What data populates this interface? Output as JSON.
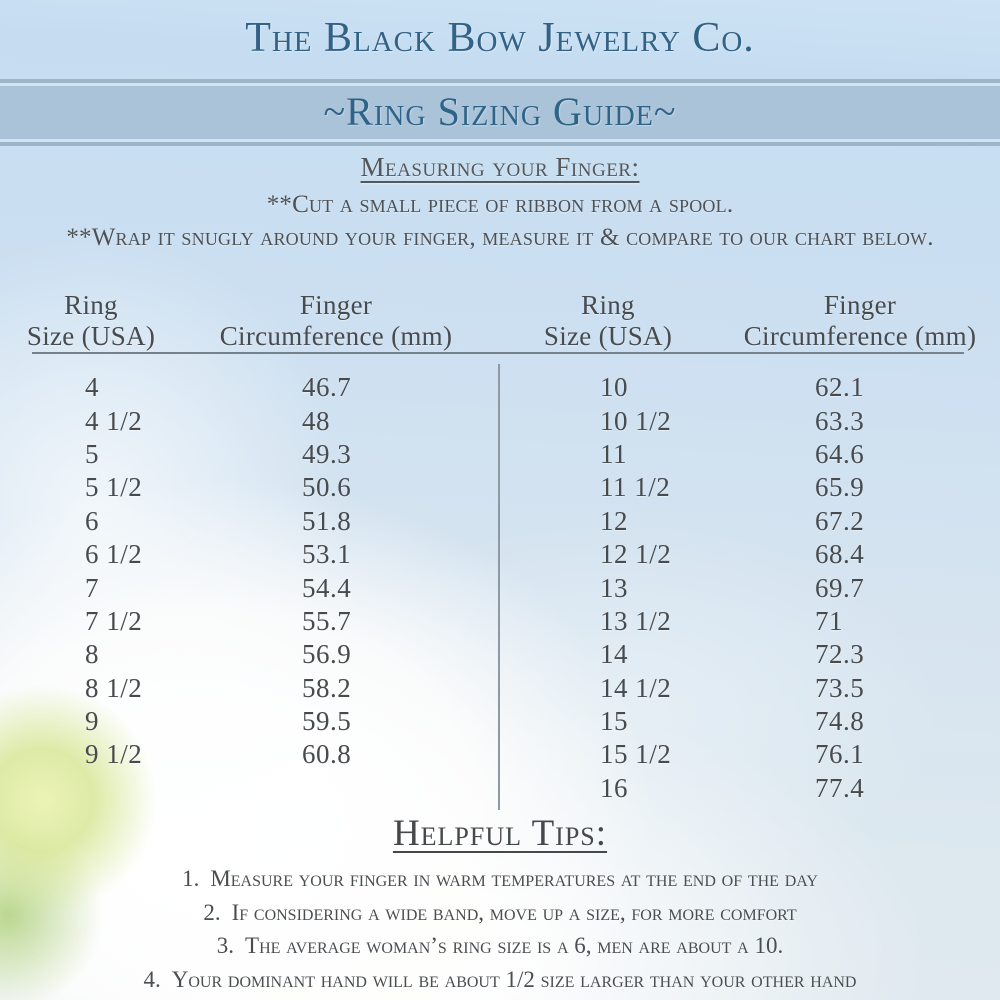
{
  "header": {
    "company": "The Black Bow Jewelry Co.",
    "banner": "~Ring Sizing Guide~"
  },
  "instructions": {
    "heading": "Measuring your Finger:",
    "line1": "**Cut a small piece of ribbon from a spool.",
    "line2": "**Wrap it snugly around your finger, measure it & compare to our chart below."
  },
  "table": {
    "size_header": [
      "Ring",
      "Size (USA)"
    ],
    "circumference_header": [
      "Finger",
      "Circumference (mm)"
    ],
    "left_rows": [
      {
        "size": "4",
        "circumference": "46.7"
      },
      {
        "size": "4 1/2",
        "circumference": "48"
      },
      {
        "size": "5",
        "circumference": "49.3"
      },
      {
        "size": "5 1/2",
        "circumference": "50.6"
      },
      {
        "size": "6",
        "circumference": "51.8"
      },
      {
        "size": "6 1/2",
        "circumference": "53.1"
      },
      {
        "size": "7",
        "circumference": "54.4"
      },
      {
        "size": "7 1/2",
        "circumference": "55.7"
      },
      {
        "size": "8",
        "circumference": "56.9"
      },
      {
        "size": "8 1/2",
        "circumference": "58.2"
      },
      {
        "size": "9",
        "circumference": "59.5"
      },
      {
        "size": "9 1/2",
        "circumference": "60.8"
      }
    ],
    "right_rows": [
      {
        "size": "10",
        "circumference": "62.1"
      },
      {
        "size": "10 1/2",
        "circumference": "63.3"
      },
      {
        "size": "11",
        "circumference": "64.6"
      },
      {
        "size": "11 1/2",
        "circumference": "65.9"
      },
      {
        "size": "12",
        "circumference": "67.2"
      },
      {
        "size": "12 1/2",
        "circumference": "68.4"
      },
      {
        "size": "13",
        "circumference": "69.7"
      },
      {
        "size": "13 1/2",
        "circumference": "71"
      },
      {
        "size": "14",
        "circumference": "72.3"
      },
      {
        "size": "14 1/2",
        "circumference": "73.5"
      },
      {
        "size": "15",
        "circumference": "74.8"
      },
      {
        "size": "15 1/2",
        "circumference": "76.1"
      },
      {
        "size": "16",
        "circumference": "77.4"
      }
    ]
  },
  "tips": {
    "heading": "Helpful Tips:",
    "items": [
      {
        "number": "1.",
        "text": "Measure your finger in warm temperatures at the end of the day"
      },
      {
        "number": "2.",
        "text": "If considering a wide band, move up a size, for more comfort"
      },
      {
        "number": "3.",
        "text": "The average woman’s ring size is a 6, men are about a 10."
      },
      {
        "number": "4.",
        "text": "Your dominant hand will be about 1/2 size larger than your other hand"
      }
    ]
  },
  "colors": {
    "title_blue": "#336287",
    "band_background": "#abc3d9",
    "band_stripe_light": "#d4e3f1",
    "band_stripe_dark": "#9db5c8",
    "body_text": "#4d5154",
    "table_text": "#474b4e",
    "rule_gray": "#75828d",
    "page_top": "#c6ddf1",
    "page_bottom": "#e0e9ef"
  }
}
